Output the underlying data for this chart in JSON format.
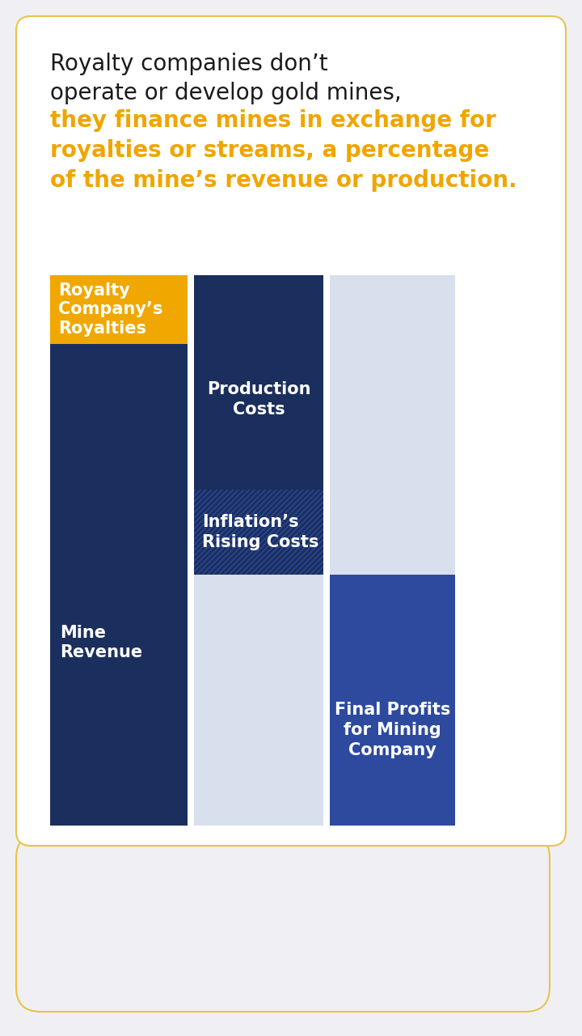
{
  "bg_color": "#f0f0f4",
  "card_color": "#ffffff",
  "border_color": "#e8c44a",
  "text_black": "#1a1a1a",
  "text_orange": "#f0a500",
  "text_white": "#ffffff",
  "dark_navy": "#1b2f5e",
  "medium_blue": "#2d4a9e",
  "light_blue_bg": "#d8e0ed",
  "gold": "#f0a800",
  "line1_normal": "Royalty companies don’t",
  "line2_normal": "operate or develop gold mines,",
  "line3_orange": "they finance mines in exchange for\nroyalties or streams, a percentage\nof the mine’s revenue or production.",
  "col1_label": "Royalty\nCompany’s\nRoyalties",
  "col1_top_color": "#f0a800",
  "col1_main_color": "#1b2f5e",
  "col1_main_label": "Mine\nRevenue",
  "col2_label": "Production\nCosts",
  "col2_inflation_label": "Inflation’s\nRising Costs",
  "col2_main_color": "#1b2f5e",
  "col2_bg_color": "#d8e0ed",
  "col3_label": "Final Profits\nfor Mining\nCompany",
  "col3_color": "#2d4a9e"
}
